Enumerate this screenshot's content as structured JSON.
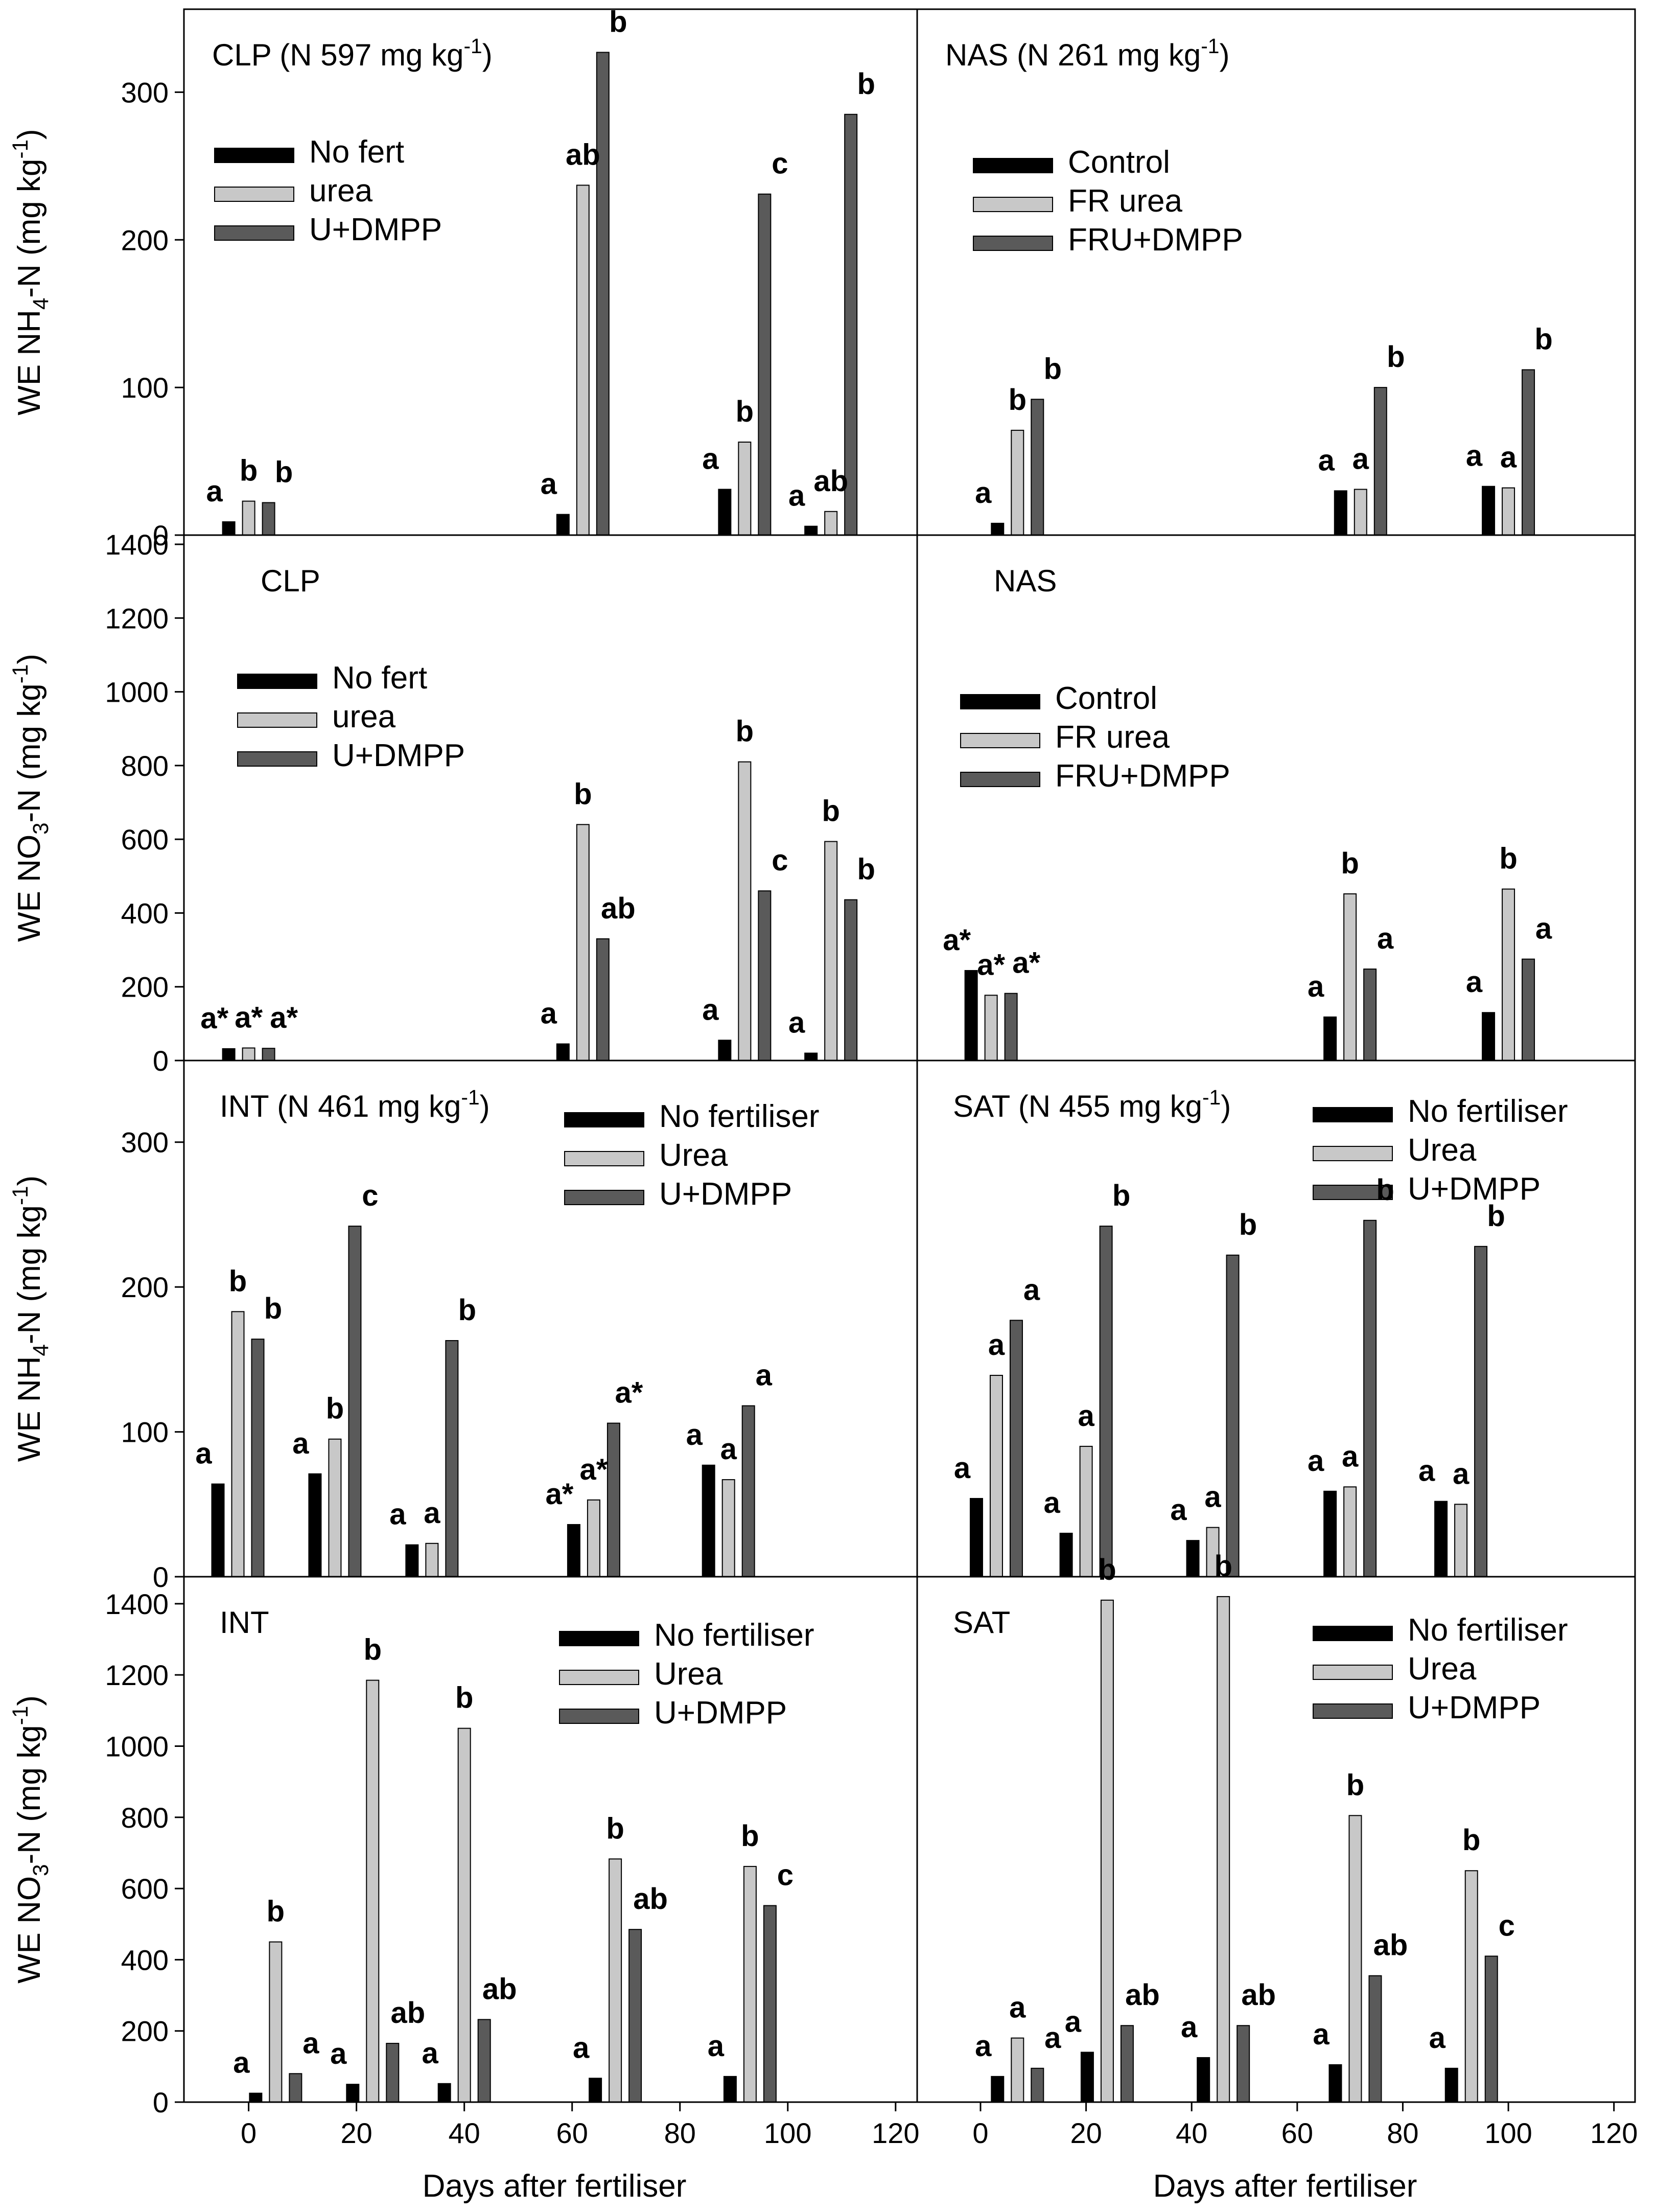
{
  "colors": {
    "s0": "#000000",
    "s1": "#c8c8c8",
    "s2": "#5a5a5a",
    "axis": "#000000",
    "bg": "#ffffff"
  },
  "x_axis": {
    "label": "Days after fertiliser",
    "range": [
      -12,
      124
    ],
    "ticks": [
      0,
      20,
      40,
      60,
      80,
      100,
      120
    ]
  },
  "chart_data": [
    {
      "id": "clp-nh4",
      "type": "bar",
      "title": "CLP (N 597 mg kg⁻¹)",
      "ylabel": "WE NH₄-N (mg kg⁻¹)",
      "ylim": [
        0,
        350
      ],
      "yticks": [
        0,
        100,
        200,
        300
      ],
      "legend": [
        "No fert",
        "urea",
        "U+DMPP"
      ],
      "legend_position": "top-left",
      "groups": [
        {
          "x": 0,
          "values": [
            9,
            23,
            22
          ],
          "labels": [
            "a",
            "b",
            "b"
          ]
        },
        {
          "x": 62,
          "values": [
            14,
            237,
            327
          ],
          "labels": [
            "a",
            "ab",
            "b"
          ]
        },
        {
          "x": 92,
          "values": [
            31,
            63,
            231
          ],
          "labels": [
            "a",
            "b",
            "c"
          ]
        },
        {
          "x": 108,
          "values": [
            6,
            16,
            285
          ],
          "labels": [
            "a",
            "ab",
            "b"
          ]
        }
      ]
    },
    {
      "id": "nas-nh4",
      "type": "bar",
      "title": "NAS (N 261 mg kg⁻¹)",
      "ylabel": "WE NH₄-N (mg kg⁻¹)",
      "ylim": [
        0,
        350
      ],
      "yticks": [
        0,
        100,
        200,
        300
      ],
      "legend": [
        "Control",
        "FR urea",
        "FRU+DMPP"
      ],
      "legend_position": "top-left",
      "groups": [
        {
          "x": 7,
          "values": [
            8,
            71,
            92
          ],
          "labels": [
            "a",
            "b",
            "b"
          ]
        },
        {
          "x": 72,
          "values": [
            30,
            31,
            100
          ],
          "labels": [
            "a",
            "a",
            "b"
          ]
        },
        {
          "x": 100,
          "values": [
            33,
            32,
            112
          ],
          "labels": [
            "a",
            "a",
            "b"
          ]
        }
      ]
    },
    {
      "id": "clp-no3",
      "type": "bar",
      "title": "CLP",
      "ylabel": "WE NO₃-N (mg kg⁻¹)",
      "ylim": [
        0,
        1400
      ],
      "yticks": [
        0,
        200,
        400,
        600,
        800,
        1000,
        1200,
        1400
      ],
      "legend": [
        "No fert",
        "urea",
        "U+DMPP"
      ],
      "legend_position": "top-left",
      "groups": [
        {
          "x": 0,
          "values": [
            32,
            34,
            33
          ],
          "labels": [
            "a*",
            "a*",
            "a*"
          ]
        },
        {
          "x": 62,
          "values": [
            45,
            640,
            330
          ],
          "labels": [
            "a",
            "b",
            "ab"
          ]
        },
        {
          "x": 92,
          "values": [
            55,
            810,
            460
          ],
          "labels": [
            "a",
            "b",
            "c"
          ]
        },
        {
          "x": 108,
          "values": [
            20,
            594,
            436
          ],
          "labels": [
            "a",
            "b",
            "b"
          ]
        }
      ]
    },
    {
      "id": "nas-no3",
      "type": "bar",
      "title": "NAS",
      "ylabel": "WE NO₃-N (mg kg⁻¹)",
      "ylim": [
        0,
        1400
      ],
      "yticks": [
        0,
        200,
        400,
        600,
        800,
        1000,
        1200,
        1400
      ],
      "legend": [
        "Control",
        "FR urea",
        "FRU+DMPP"
      ],
      "legend_position": "top-left",
      "groups": [
        {
          "x": 2,
          "values": [
            244,
            177,
            182
          ],
          "labels": [
            "a*",
            "a*",
            "a*"
          ]
        },
        {
          "x": 70,
          "values": [
            118,
            452,
            248
          ],
          "labels": [
            "a",
            "b",
            "a"
          ]
        },
        {
          "x": 100,
          "values": [
            130,
            465,
            275
          ],
          "labels": [
            "a",
            "b",
            "a"
          ]
        }
      ]
    },
    {
      "id": "int-nh4",
      "type": "bar",
      "title": "INT (N 461 mg kg⁻¹)",
      "ylabel": "WE NH₄-N (mg kg⁻¹)",
      "ylim": [
        0,
        350
      ],
      "yticks": [
        0,
        100,
        200,
        300
      ],
      "legend": [
        "No fertiliser",
        "Urea",
        "U+DMPP"
      ],
      "legend_position": "top-right",
      "groups": [
        {
          "x": -2,
          "values": [
            64,
            183,
            164
          ],
          "labels": [
            "a",
            "b",
            "b"
          ]
        },
        {
          "x": 16,
          "values": [
            71,
            95,
            242
          ],
          "labels": [
            "a",
            "b",
            "c"
          ]
        },
        {
          "x": 34,
          "values": [
            22,
            23,
            163
          ],
          "labels": [
            "a",
            "a",
            "b"
          ]
        },
        {
          "x": 64,
          "values": [
            36,
            53,
            106
          ],
          "labels": [
            "a*",
            "a*",
            "a*"
          ]
        },
        {
          "x": 89,
          "values": [
            77,
            67,
            118
          ],
          "labels": [
            "a",
            "a",
            "a"
          ]
        }
      ]
    },
    {
      "id": "sat-nh4",
      "type": "bar",
      "title": "SAT (N 455 mg kg⁻¹)",
      "ylabel": "WE NH₄-N (mg kg⁻¹)",
      "ylim": [
        0,
        350
      ],
      "yticks": [
        0,
        100,
        200,
        300
      ],
      "legend": [
        "No fertiliser",
        "Urea",
        "U+DMPP"
      ],
      "legend_position": "top-right",
      "groups": [
        {
          "x": 3,
          "values": [
            54,
            139,
            177
          ],
          "labels": [
            "a",
            "a",
            "a"
          ]
        },
        {
          "x": 20,
          "values": [
            30,
            90,
            242
          ],
          "labels": [
            "a",
            "a",
            "b"
          ]
        },
        {
          "x": 44,
          "values": [
            25,
            34,
            222
          ],
          "labels": [
            "a",
            "a",
            "b"
          ]
        },
        {
          "x": 70,
          "values": [
            59,
            62,
            246
          ],
          "labels": [
            "a",
            "a",
            "b"
          ]
        },
        {
          "x": 91,
          "values": [
            52,
            50,
            228
          ],
          "labels": [
            "a",
            "a",
            "b"
          ]
        }
      ]
    },
    {
      "id": "int-no3",
      "type": "bar",
      "title": "INT",
      "ylabel": "WE NO₃-N (mg kg⁻¹)",
      "ylim": [
        0,
        1450
      ],
      "yticks": [
        0,
        200,
        400,
        600,
        800,
        1000,
        1200,
        1400
      ],
      "legend": [
        "No fertiliser",
        "Urea",
        "U+DMPP"
      ],
      "legend_position": "top-right",
      "groups": [
        {
          "x": 5,
          "values": [
            25,
            450,
            80
          ],
          "labels": [
            "a",
            "b",
            "a"
          ]
        },
        {
          "x": 23,
          "values": [
            50,
            1185,
            165
          ],
          "labels": [
            "a",
            "b",
            "ab"
          ]
        },
        {
          "x": 40,
          "values": [
            52,
            1050,
            232
          ],
          "labels": [
            "a",
            "b",
            "ab"
          ]
        },
        {
          "x": 68,
          "values": [
            67,
            683,
            485
          ],
          "labels": [
            "a",
            "b",
            "ab"
          ]
        },
        {
          "x": 93,
          "values": [
            72,
            662,
            552
          ],
          "labels": [
            "a",
            "b",
            "c"
          ]
        }
      ]
    },
    {
      "id": "sat-no3",
      "type": "bar",
      "title": "SAT",
      "ylabel": "WE NO₃-N (mg kg⁻¹)",
      "ylim": [
        0,
        1450
      ],
      "yticks": [
        0,
        200,
        400,
        600,
        800,
        1000,
        1200,
        1400
      ],
      "legend": [
        "No fertiliser",
        "Urea",
        "U+DMPP"
      ],
      "legend_position": "top-right",
      "groups": [
        {
          "x": 7,
          "values": [
            72,
            180,
            95
          ],
          "labels": [
            "a",
            "a",
            "a"
          ]
        },
        {
          "x": 24,
          "values": [
            140,
            1410,
            215
          ],
          "labels": [
            "a",
            "b",
            "ab"
          ]
        },
        {
          "x": 46,
          "values": [
            125,
            1420,
            215
          ],
          "labels": [
            "a",
            "b",
            "ab"
          ]
        },
        {
          "x": 71,
          "values": [
            105,
            805,
            355
          ],
          "labels": [
            "a",
            "b",
            "ab"
          ]
        },
        {
          "x": 93,
          "values": [
            95,
            650,
            410
          ],
          "labels": [
            "a",
            "b",
            "c"
          ]
        }
      ]
    }
  ]
}
